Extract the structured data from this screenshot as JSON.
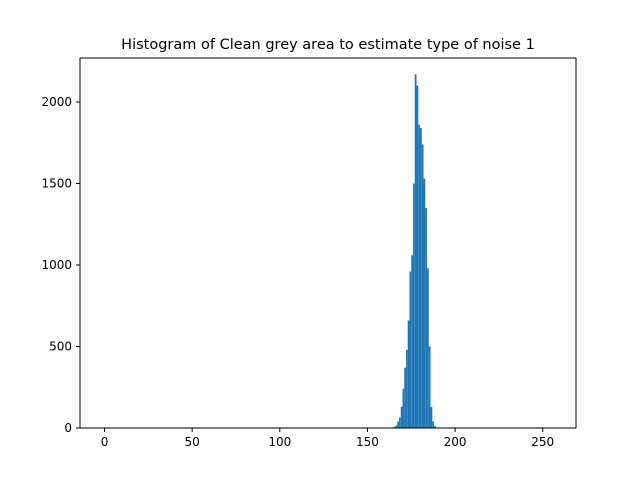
{
  "chart_data": {
    "type": "bar",
    "title": "Histogram of Clean grey area to estimate type of noise 1",
    "xlabel": "",
    "ylabel": "",
    "xlim": [
      -14,
      269
    ],
    "ylim": [
      0,
      2270
    ],
    "x_ticks": [
      0,
      50,
      100,
      150,
      200,
      250
    ],
    "y_ticks": [
      0,
      500,
      1000,
      1500,
      2000
    ],
    "bar_width": 1,
    "color": "#1f77b4",
    "grid": false,
    "bins": [
      {
        "x": 164,
        "value": 3
      },
      {
        "x": 165,
        "value": 8
      },
      {
        "x": 166,
        "value": 15
      },
      {
        "x": 167,
        "value": 40
      },
      {
        "x": 168,
        "value": 65
      },
      {
        "x": 169,
        "value": 130
      },
      {
        "x": 170,
        "value": 240
      },
      {
        "x": 171,
        "value": 370
      },
      {
        "x": 172,
        "value": 480
      },
      {
        "x": 173,
        "value": 660
      },
      {
        "x": 174,
        "value": 960
      },
      {
        "x": 175,
        "value": 1060
      },
      {
        "x": 176,
        "value": 1500
      },
      {
        "x": 177,
        "value": 2170
      },
      {
        "x": 178,
        "value": 2100
      },
      {
        "x": 179,
        "value": 1860
      },
      {
        "x": 180,
        "value": 1840
      },
      {
        "x": 181,
        "value": 1740
      },
      {
        "x": 182,
        "value": 1530
      },
      {
        "x": 183,
        "value": 1350
      },
      {
        "x": 184,
        "value": 980
      },
      {
        "x": 185,
        "value": 500
      },
      {
        "x": 186,
        "value": 130
      },
      {
        "x": 187,
        "value": 40
      },
      {
        "x": 188,
        "value": 12
      },
      {
        "x": 189,
        "value": 4
      }
    ]
  }
}
